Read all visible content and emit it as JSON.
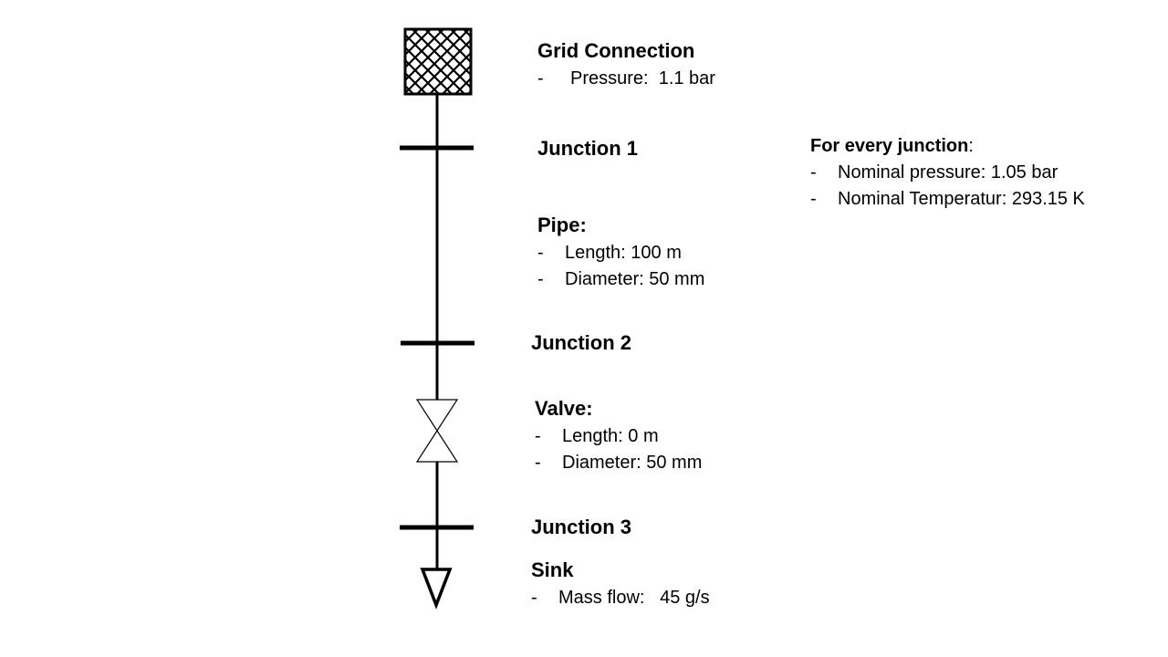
{
  "grid_connection": {
    "title": "Grid Connection",
    "items": [
      "Pressure:  1.1 bar"
    ]
  },
  "junction_1": {
    "title": "Junction 1"
  },
  "pipe": {
    "title": "Pipe:",
    "items": [
      "Length: 100 m",
      "Diameter: 50 mm"
    ]
  },
  "junction_2": {
    "title": "Junction 2"
  },
  "valve": {
    "title": "Valve:",
    "items": [
      "Length: 0 m",
      "Diameter: 50 mm"
    ]
  },
  "junction_3": {
    "title": "Junction 3"
  },
  "sink": {
    "title": "Sink",
    "items": [
      "Mass flow:   45 g/s"
    ]
  },
  "note": {
    "title": "For every junction",
    "title_suffix": ":",
    "items": [
      "Nominal pressure: 1.05 bar",
      "Nominal Temperatur: 293.15 K"
    ]
  },
  "bullet": "-",
  "icons": {
    "grid_connection": "crosshatch-square-icon",
    "junction": "bar-icon",
    "valve": "bowtie-icon",
    "sink": "down-triangle-icon"
  },
  "colors": {
    "line": "#000000",
    "background": "#ffffff"
  }
}
